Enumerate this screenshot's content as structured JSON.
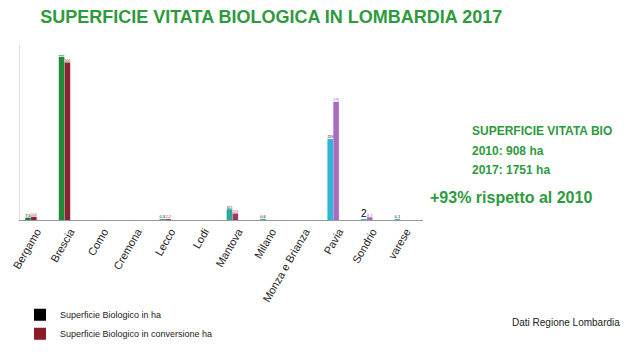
{
  "chart_data": {
    "type": "bar",
    "title": "SUPERFICIE VITATA BIOLOGICA IN LOMBARDIA 2017",
    "categories": [
      "Bergamo",
      "Brescia",
      "Como",
      "Cremona",
      "Lecco",
      "Lodi",
      "Mantova",
      "Milano",
      "Monza e Brianza",
      "Pavia",
      "Sondrio",
      "varese"
    ],
    "series": [
      {
        "name": "Superficie Biologico in ha",
        "color": "#000000",
        "values": [
          7.6,
          522.5,
          null,
          null,
          0.3,
          null,
          34.5,
          0.6,
          null,
          259,
          2,
          0.1
        ],
        "value_labels": [
          "7,6",
          "522,5",
          null,
          null,
          "0,3",
          null,
          "34,5",
          "0,6",
          null,
          "259",
          "2",
          "0,1"
        ],
        "colors": [
          "#1b7f3b",
          "#1e8a3a",
          "#1e8a3a",
          "#1e8a3a",
          "#2aa89a",
          "#2aa89a",
          "#2aa89a",
          "#2aa89a",
          "#2bb6d6",
          "#2bb6d6",
          "#2bb6d6",
          "#2bb6d6"
        ]
      },
      {
        "name": "Superficie Biologico in conversione ha",
        "color": "#8b1a2a",
        "values": [
          10.4,
          504,
          null,
          null,
          2.2,
          null,
          20.8,
          null,
          null,
          378,
          8.7,
          null
        ],
        "value_labels": [
          "10,4",
          "504",
          null,
          null,
          "2,2",
          null,
          "20,8",
          null,
          null,
          "378",
          "8,7",
          null
        ],
        "colors": [
          "#8b2332",
          "#8b2332",
          "#8b2332",
          "#8b2332",
          "#a0405a",
          "#a0405a",
          "#9b3a5c",
          "#9b3a5c",
          "#a86bc4",
          "#a86bc4",
          "#a86bc4",
          "#a86bc4"
        ]
      }
    ],
    "ylim": [
      0,
      560
    ],
    "yticks": [],
    "grid": false,
    "data_labels": true,
    "tick_labels": "x",
    "legend": "bottom-left",
    "annotations": [
      "SUPERFICIE VITATA BIO",
      "2010: 908 ha",
      "2017: 1751 ha",
      "+93% rispetto al 2010",
      "Dati Regione Lombardia"
    ]
  }
}
